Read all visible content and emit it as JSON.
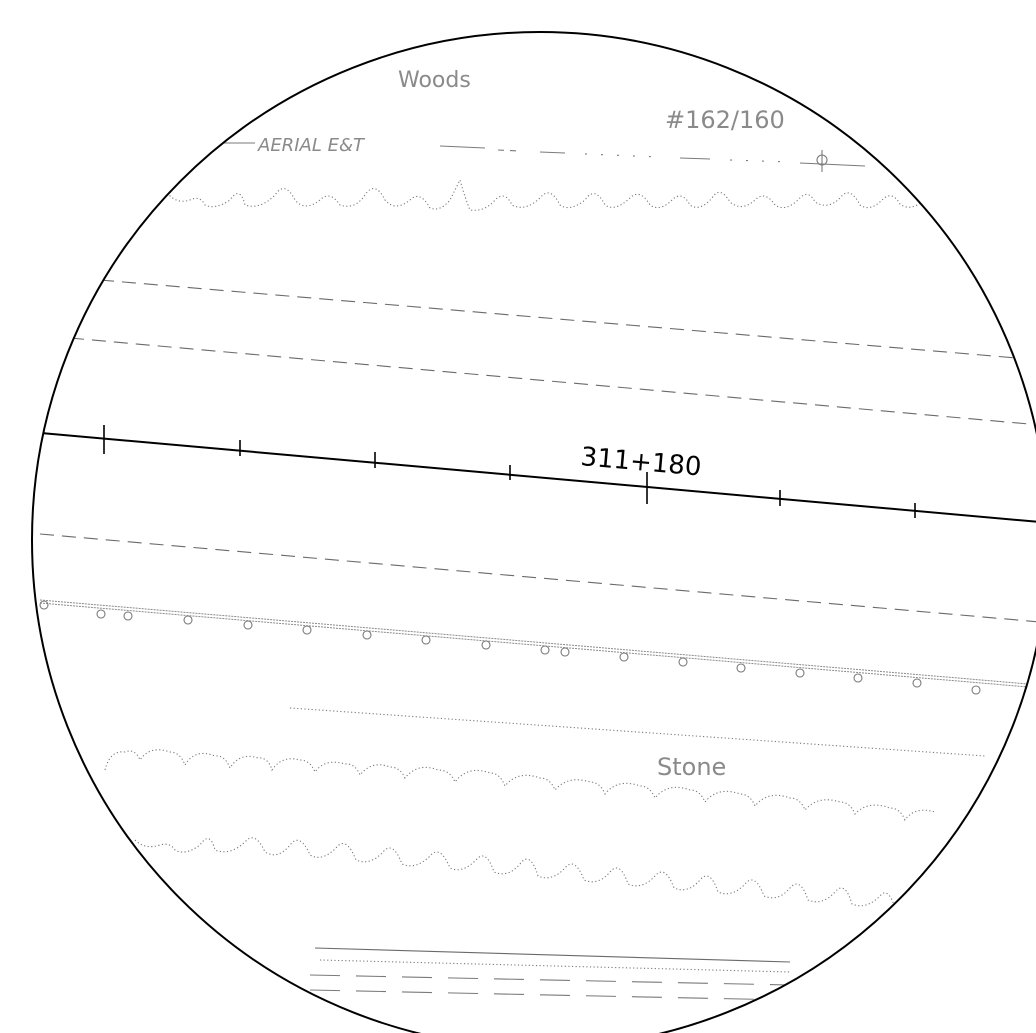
{
  "labels": {
    "woods": "Woods",
    "reference": "#162/160",
    "aerial_line": "AERIAL E&T",
    "station": "311+180",
    "stone": "Stone"
  }
}
